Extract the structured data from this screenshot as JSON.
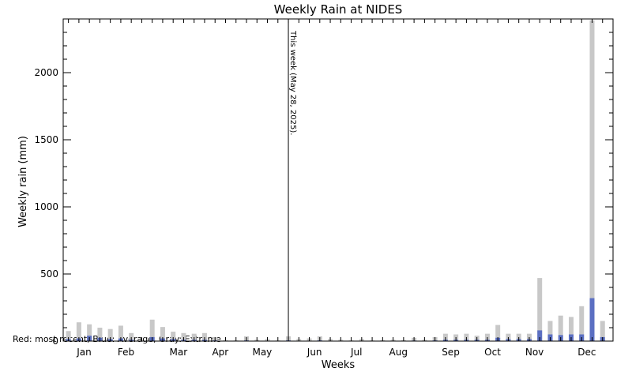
{
  "chart_data": {
    "type": "bar",
    "title": "Weekly Rain at NIDES",
    "xlabel": "Weeks",
    "ylabel": "Weekly rain (mm)",
    "ylim": [
      0,
      2400
    ],
    "yticks": [
      0,
      500,
      1000,
      1500,
      2000
    ],
    "month_labels": [
      "Jan",
      "Feb",
      "Mar",
      "Apr",
      "May",
      "Jun",
      "Jul",
      "Aug",
      "Sep",
      "Oct",
      "Nov",
      "Dec"
    ],
    "month_weeks": [
      2.5,
      6.5,
      11.5,
      15.5,
      19.5,
      24.5,
      28.5,
      32.5,
      37.5,
      41.5,
      45.5,
      50.5
    ],
    "annotation": {
      "week": 22,
      "text": "This week (May 28, 2025)."
    },
    "legend_text": "Red: most recent, Blue: Average, Gray: Extreme",
    "colors": {
      "extreme": "#c8c8c8",
      "average": "#5b6fc2",
      "recent": "#cc0000"
    },
    "weeks": [
      1,
      2,
      3,
      4,
      5,
      6,
      7,
      8,
      9,
      10,
      11,
      12,
      13,
      14,
      15,
      16,
      17,
      18,
      19,
      20,
      21,
      22,
      23,
      24,
      25,
      26,
      27,
      28,
      29,
      30,
      31,
      32,
      33,
      34,
      35,
      36,
      37,
      38,
      39,
      40,
      41,
      42,
      43,
      44,
      45,
      46,
      47,
      48,
      49,
      50,
      51,
      52
    ],
    "series": [
      {
        "name": "Extreme",
        "values": [
          75,
          140,
          125,
          100,
          90,
          115,
          60,
          0,
          160,
          105,
          70,
          60,
          55,
          60,
          30,
          8,
          5,
          35,
          10,
          15,
          5,
          35,
          15,
          20,
          35,
          15,
          10,
          5,
          15,
          5,
          8,
          10,
          8,
          25,
          10,
          30,
          55,
          50,
          55,
          40,
          55,
          120,
          55,
          55,
          55,
          470,
          150,
          190,
          180,
          260,
          2390,
          150
        ]
      },
      {
        "name": "Average",
        "values": [
          15,
          20,
          40,
          25,
          15,
          20,
          10,
          0,
          30,
          20,
          15,
          10,
          10,
          10,
          5,
          2,
          1,
          5,
          2,
          3,
          1,
          5,
          2,
          3,
          5,
          2,
          1,
          1,
          2,
          1,
          2,
          2,
          2,
          4,
          2,
          5,
          10,
          10,
          10,
          10,
          10,
          25,
          15,
          15,
          15,
          80,
          50,
          45,
          50,
          50,
          320,
          30
        ]
      }
    ]
  }
}
